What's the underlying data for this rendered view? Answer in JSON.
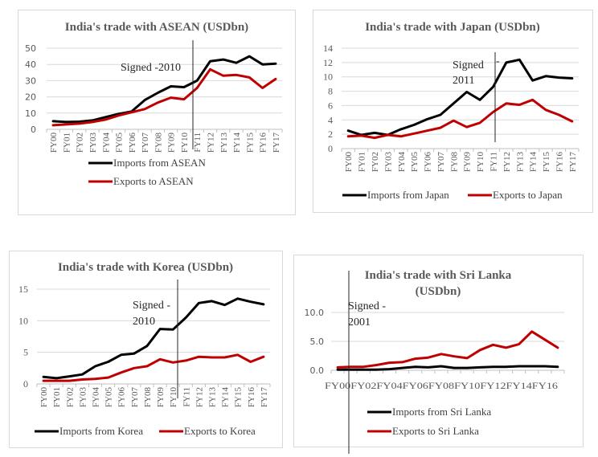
{
  "colors": {
    "imports": "#000000",
    "exports": "#c00000",
    "grid": "#d9d9d9",
    "axis": "#bfbfbf",
    "signed_line": "#262626"
  },
  "chart_data": [
    {
      "id": "asean",
      "type": "line",
      "title": "India's trade with ASEAN (USDbn)",
      "xlabel": "",
      "ylabel": "",
      "ylim": [
        0,
        50
      ],
      "yticks": [
        "0",
        "10",
        "20",
        "30",
        "40",
        "50"
      ],
      "ytick_values": [
        0,
        10,
        20,
        30,
        40,
        50
      ],
      "grid": true,
      "categories": [
        "FY00",
        "FY01",
        "FY02",
        "FY03",
        "FY04",
        "FY05",
        "FY06",
        "FY07",
        "FY08",
        "FY09",
        "FY10",
        "FY11",
        "FY12",
        "FY13",
        "FY14",
        "FY15",
        "FY16",
        "FY17"
      ],
      "xtick_labels": [
        "FY00",
        "FY01",
        "FY02",
        "FY03",
        "FY04",
        "FY05",
        "FY06",
        "FY07",
        "FY08",
        "FY09",
        "FY10",
        "FY11",
        "FY12",
        "FY13",
        "FY14",
        "FY15",
        "FY16",
        "FY17"
      ],
      "series": [
        {
          "name": "Imports from ASEAN",
          "color": "#000000",
          "values": [
            5,
            4.5,
            4.7,
            5.5,
            7.5,
            9.5,
            11,
            18,
            22.5,
            26.5,
            26,
            30,
            42,
            43,
            41,
            45,
            40,
            40.5
          ]
        },
        {
          "name": "Exports to ASEAN",
          "color": "#c00000",
          "values": [
            2.5,
            3,
            3.5,
            4.5,
            6,
            8.5,
            10.5,
            12.5,
            16.5,
            19.5,
            18.5,
            25.5,
            37,
            33,
            33.5,
            32,
            25.5,
            31
          ]
        }
      ],
      "annotation": {
        "lines": [
          "Signed  -2010"
        ],
        "at_category_index": 10.5
      },
      "legend": "bottom-stacked"
    },
    {
      "id": "japan",
      "type": "line",
      "title": "India's trade with Japan (USDbn)",
      "xlabel": "",
      "ylabel": "",
      "ylim": [
        0,
        14
      ],
      "yticks": [
        "0",
        "2",
        "4",
        "6",
        "8",
        "10",
        "12",
        "14"
      ],
      "ytick_values": [
        0,
        2,
        4,
        6,
        8,
        10,
        12,
        14
      ],
      "grid": true,
      "categories": [
        "FY00",
        "FY01",
        "FY02",
        "FY03",
        "FY04",
        "FY05",
        "FY06",
        "FY07",
        "FY08",
        "FY09",
        "FY10",
        "FY11",
        "FY12",
        "FY13",
        "FY14",
        "FY15",
        "FY16",
        "FY17"
      ],
      "xtick_labels": [
        "FY00",
        "FY01",
        "FY02",
        "FY03",
        "FY04",
        "FY05",
        "FY06",
        "FY07",
        "FY08",
        "FY09",
        "FY10",
        "FY11",
        "FY12",
        "FY13",
        "FY14",
        "FY15",
        "FY16",
        "FY17"
      ],
      "series": [
        {
          "name": "Imports from Japan",
          "color": "#000000",
          "values": [
            2.5,
            1.9,
            2.2,
            1.9,
            2.7,
            3.3,
            4.1,
            4.7,
            6.3,
            7.9,
            6.8,
            8.6,
            12,
            12.4,
            9.5,
            10.1,
            9.9,
            9.8
          ]
        },
        {
          "name": "Exports to Japan",
          "color": "#c00000",
          "values": [
            1.7,
            1.8,
            1.5,
            1.9,
            1.7,
            2.1,
            2.5,
            2.9,
            3.9,
            3.0,
            3.6,
            5.1,
            6.3,
            6.1,
            6.8,
            5.4,
            4.7,
            3.8
          ]
        }
      ],
      "annotation": {
        "lines": [
          "Signed",
          "2011"
        ],
        "dash": "-",
        "at_category_index": 11.2
      },
      "legend": "bottom-row"
    },
    {
      "id": "korea",
      "type": "line",
      "title": "India's trade with Korea (USDbn)",
      "xlabel": "",
      "ylabel": "",
      "ylim": [
        0,
        15
      ],
      "yticks": [
        "0",
        "5",
        "10",
        "15"
      ],
      "ytick_values": [
        0,
        5,
        10,
        15
      ],
      "grid": true,
      "categories": [
        "FY00",
        "FY01",
        "FY02",
        "FY03",
        "FY04",
        "FY05",
        "FY06",
        "FY07",
        "FY08",
        "FY09",
        "FY10",
        "FY11",
        "FY12",
        "FY13",
        "FY14",
        "FY15",
        "FY16",
        "FY17"
      ],
      "xtick_labels": [
        "FY00",
        "FY01",
        "FY02",
        "FY03",
        "FY04",
        "FY05",
        "FY06",
        "FY07",
        "FY08",
        "FY09",
        "FY10",
        "FY11",
        "FY12",
        "FY13",
        "FY14",
        "FY15",
        "FY16",
        "FY17"
      ],
      "series": [
        {
          "name": "Imports from Korea",
          "color": "#000000",
          "values": [
            1.1,
            0.9,
            1.2,
            1.5,
            2.8,
            3.5,
            4.6,
            4.8,
            6.0,
            8.7,
            8.6,
            10.5,
            12.8,
            13.1,
            12.5,
            13.5,
            13.0,
            12.6
          ]
        },
        {
          "name": "Exports to Korea",
          "color": "#c00000",
          "values": [
            0.5,
            0.5,
            0.5,
            0.7,
            0.8,
            1.0,
            1.8,
            2.5,
            2.8,
            3.9,
            3.4,
            3.7,
            4.3,
            4.2,
            4.2,
            4.6,
            3.5,
            4.3
          ]
        }
      ],
      "annotation": {
        "lines": [
          "Signed  -",
          "2010"
        ],
        "at_category_index": 10.3
      },
      "legend": "bottom-row"
    },
    {
      "id": "srilanka",
      "type": "line",
      "title": [
        "India's trade with Sri Lanka",
        "(USDbn)"
      ],
      "xlabel": "",
      "ylabel": "",
      "ylim": [
        0,
        10
      ],
      "yticks": [
        "0.0",
        "5.0",
        "10.0"
      ],
      "ytick_values": [
        0,
        5,
        10
      ],
      "grid": true,
      "categories": [
        "FY00",
        "FY01",
        "FY02",
        "FY03",
        "FY04",
        "FY05",
        "FY06",
        "FY07",
        "FY08",
        "FY09",
        "FY10",
        "FY11",
        "FY12",
        "FY13",
        "FY14",
        "FY15",
        "FY16",
        "FY17"
      ],
      "xtick_labels": [
        "FY00",
        "FY02",
        "FY04",
        "FY06",
        "FY08",
        "FY10",
        "FY12",
        "FY14",
        "FY16"
      ],
      "series": [
        {
          "name": "Imports from Sri Lanka",
          "color": "#000000",
          "values": [
            0.1,
            0.1,
            0.1,
            0.1,
            0.2,
            0.4,
            0.6,
            0.5,
            0.7,
            0.4,
            0.4,
            0.5,
            0.6,
            0.6,
            0.7,
            0.7,
            0.7,
            0.6
          ]
        },
        {
          "name": "Exports to Sri Lanka",
          "color": "#c00000",
          "values": [
            0.5,
            0.6,
            0.6,
            0.9,
            1.3,
            1.4,
            2.0,
            2.2,
            2.8,
            2.4,
            2.1,
            3.5,
            4.4,
            3.9,
            4.5,
            6.7,
            5.3,
            3.9
          ]
        }
      ],
      "annotation": {
        "lines": [
          "Signed  -",
          "2001"
        ],
        "at_category_index": 0.9
      },
      "legend": "bottom-stacked"
    }
  ]
}
